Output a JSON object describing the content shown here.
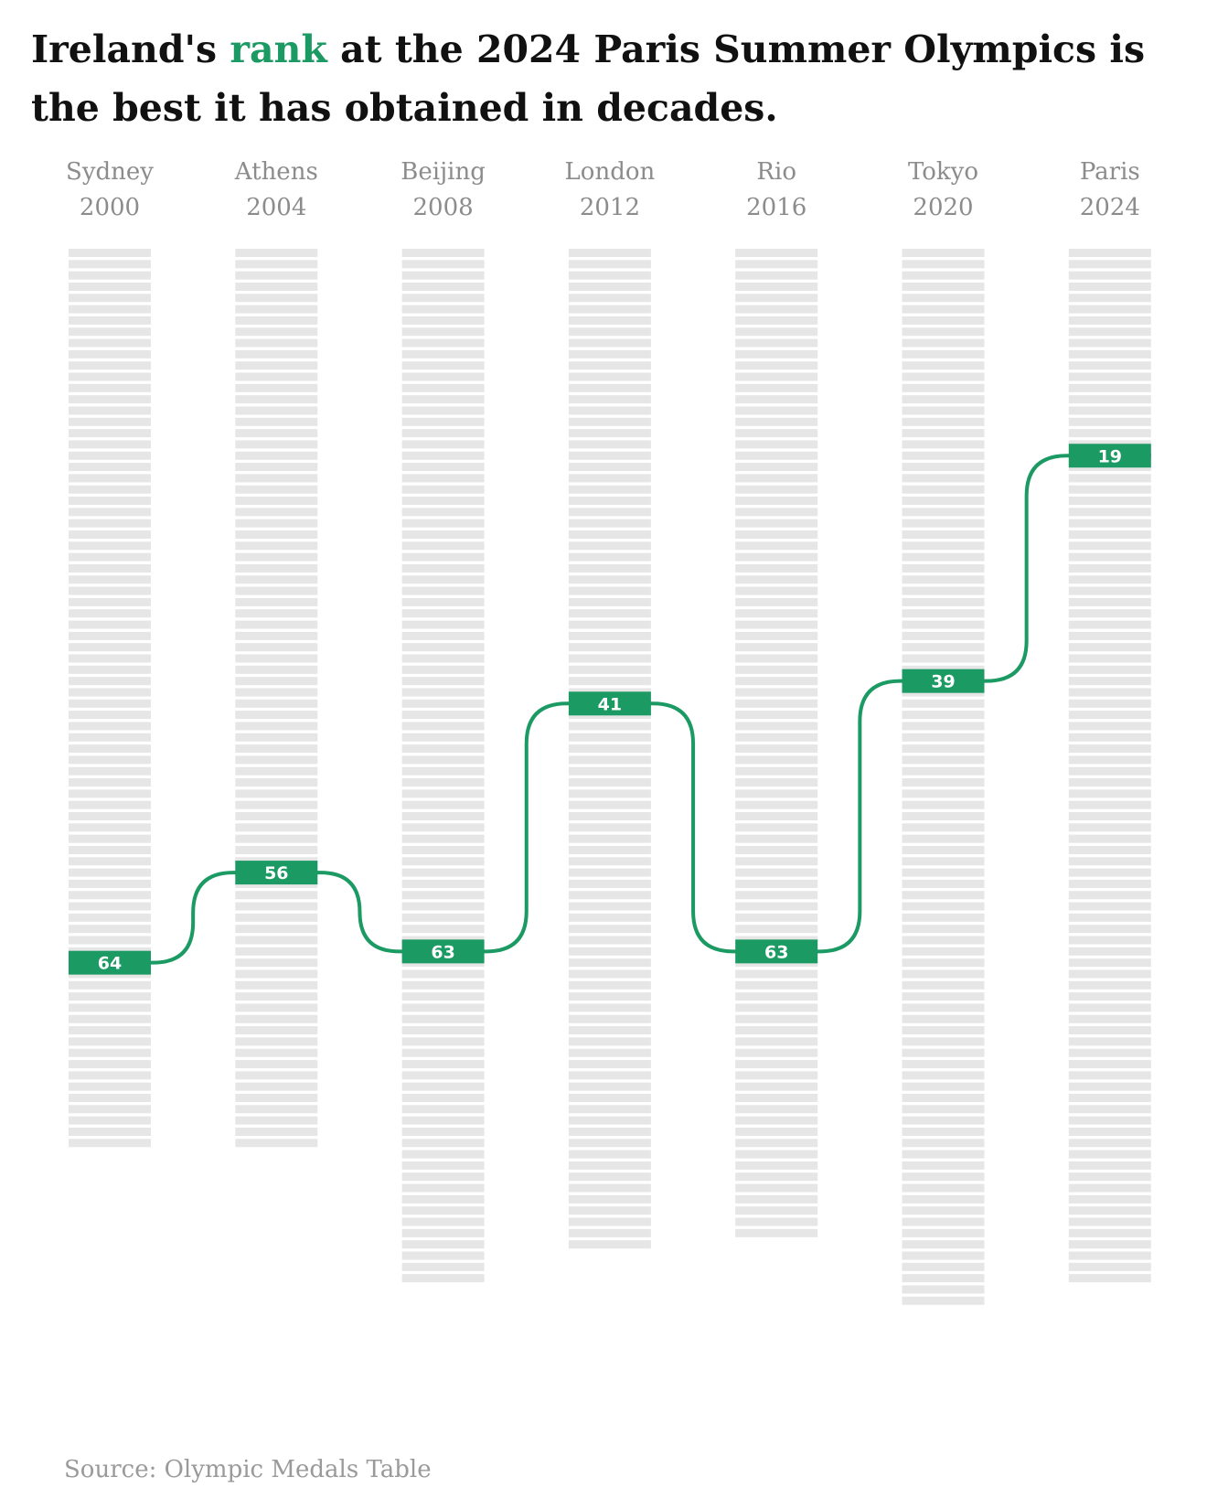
{
  "title": {
    "before": "Ireland's ",
    "accent": "rank",
    "after": " at the 2024 Paris Summer Olympics is the best it has obtained in decades."
  },
  "source": "Source: Olympic Medals Table",
  "colors": {
    "accent": "#1b9a63",
    "slot": "#e6e6e6",
    "label": "#8c8c8c",
    "title": "#111111"
  },
  "chart_data": {
    "type": "line",
    "direction": "rank, 1 at top",
    "columns": [
      {
        "city": "Sydney",
        "year": "2000",
        "rank": 64,
        "total_ranked": 80
      },
      {
        "city": "Athens",
        "year": "2004",
        "rank": 56,
        "total_ranked": 80
      },
      {
        "city": "Beijing",
        "year": "2008",
        "rank": 63,
        "total_ranked": 92
      },
      {
        "city": "London",
        "year": "2012",
        "rank": 41,
        "total_ranked": 89
      },
      {
        "city": "Rio",
        "year": "2016",
        "rank": 63,
        "total_ranked": 88
      },
      {
        "city": "Tokyo",
        "year": "2020",
        "rank": 39,
        "total_ranked": 94
      },
      {
        "city": "Paris",
        "year": "2024",
        "rank": 19,
        "total_ranked": 92
      }
    ]
  }
}
